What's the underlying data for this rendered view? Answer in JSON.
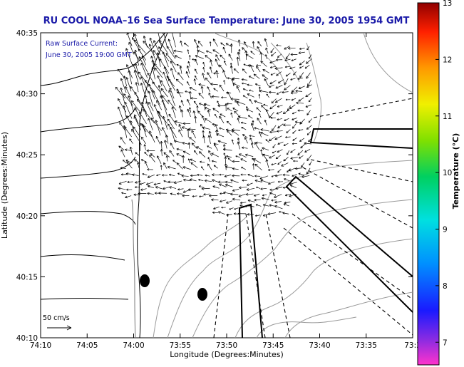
{
  "title": "RU COOL  NOAA–16  Sea Surface Temperature:  June 30, 2005 1954 GMT",
  "legend": {
    "line1": "Raw Surface Current:",
    "line2": "June 30, 2005 19:00 GMT",
    "color": "#1a1aa8"
  },
  "scale_label": "50 cm/s",
  "axes": {
    "xlabel": "Longitude (Degrees:Minutes)",
    "ylabel": "Latitude (Degrees:Minutes)",
    "x_ticks": [
      "74:10",
      "74:05",
      "74:00",
      "73:55",
      "73:50",
      "73:45",
      "73:40",
      "73:35",
      "73:3"
    ],
    "y_ticks": [
      "40:35",
      "40:30",
      "40:25",
      "40:20",
      "40:15",
      "40:10"
    ]
  },
  "colorbar": {
    "label": "Temperature (°C)",
    "ticks": [
      "13",
      "12",
      "11",
      "10",
      "9",
      "8",
      "7"
    ],
    "min": 6.6,
    "max": 13
  }
}
